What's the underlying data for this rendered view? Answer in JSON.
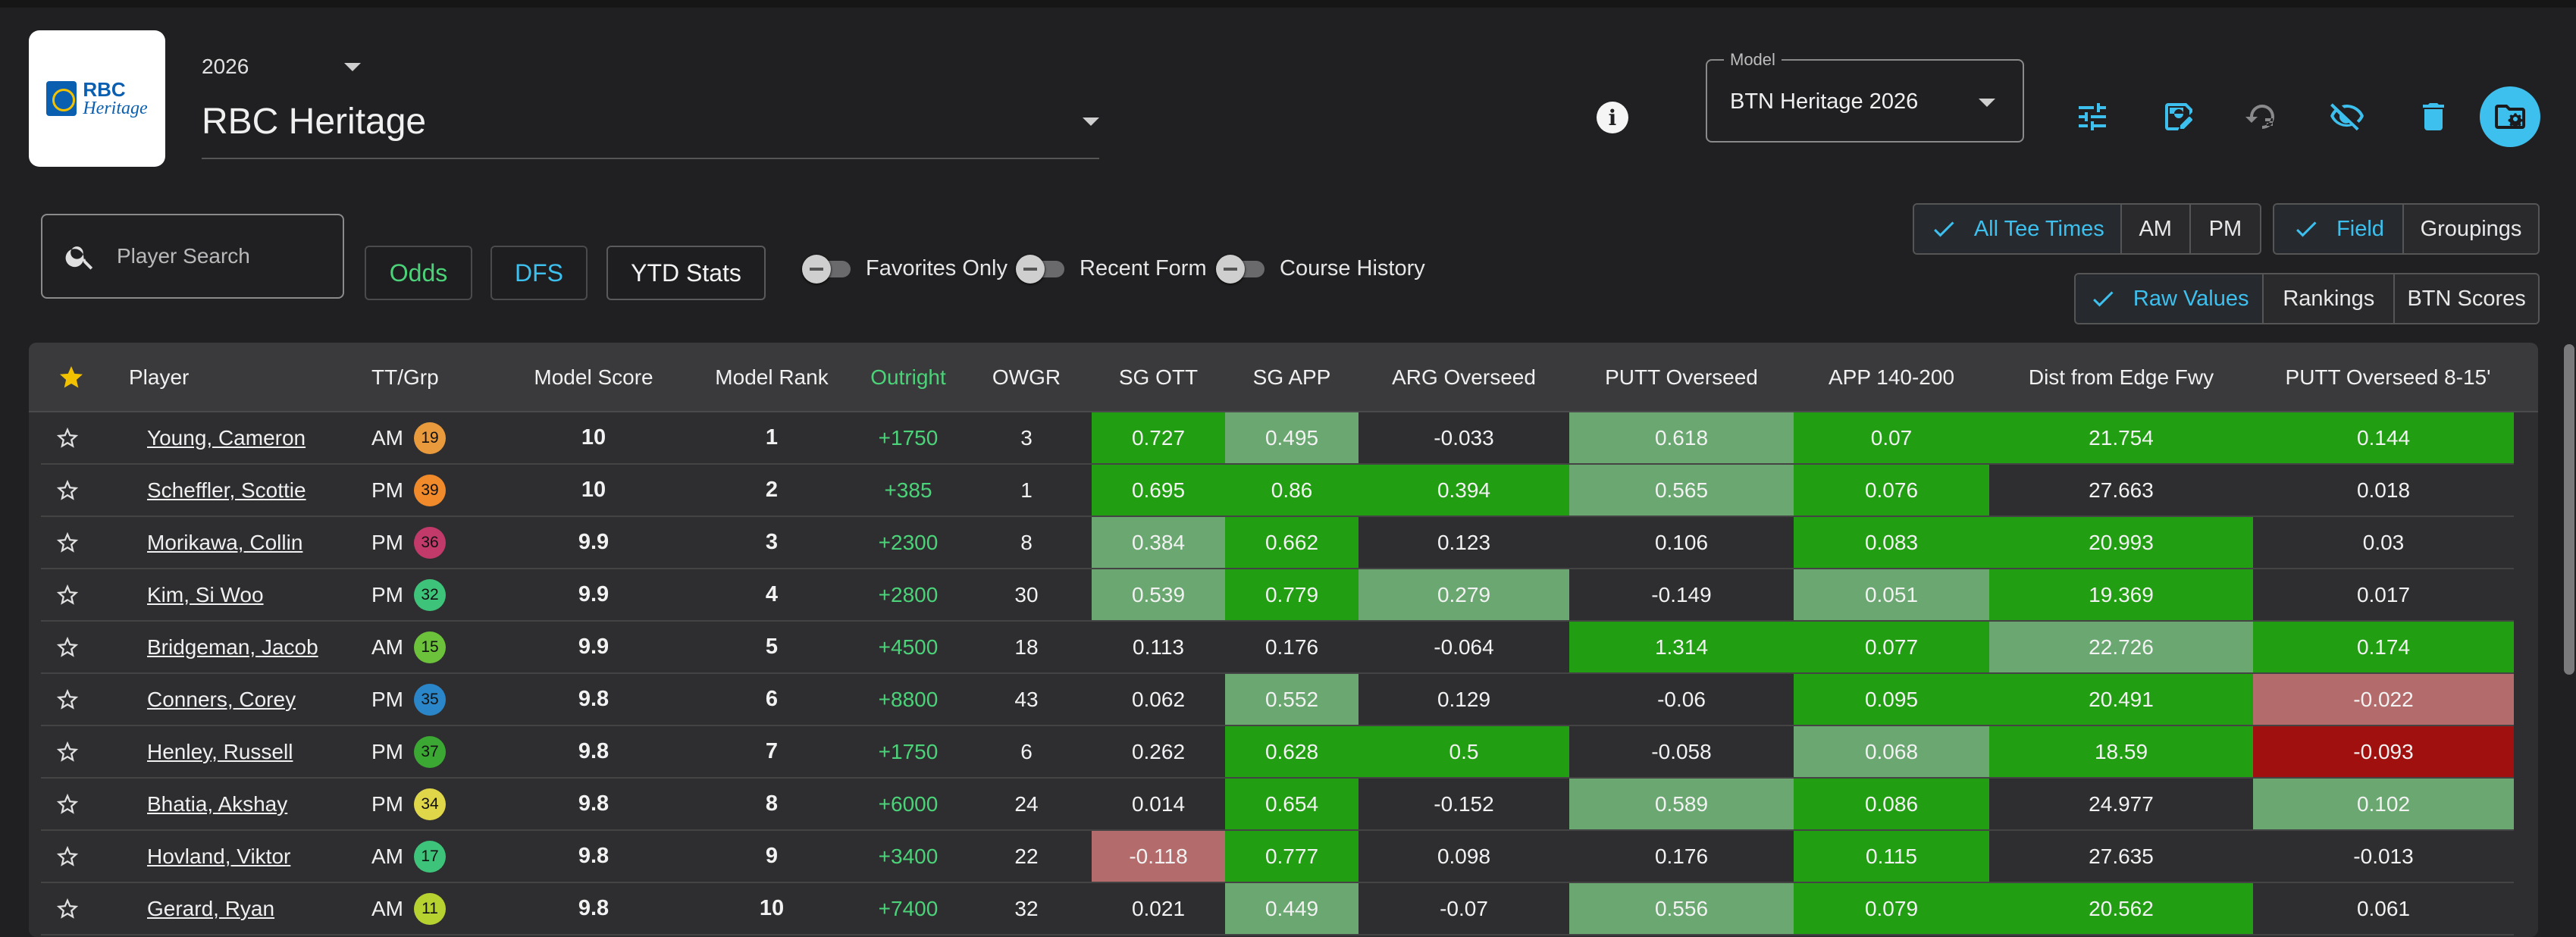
{
  "header": {
    "logo": {
      "line1": "RBC",
      "line2": "Heritage"
    },
    "year": "2026",
    "event": "RBC Heritage",
    "model_label": "Model",
    "model_value": "BTN Heritage 2026",
    "info_glyph": "i"
  },
  "toolbar": {
    "icons": [
      "sliders-icon",
      "save-icon",
      "reset-icon",
      "visibility-off-icon",
      "delete-icon",
      "folder-settings-icon"
    ],
    "colors": {
      "accent": "#3ec0ee",
      "icon": "#3ec0ee"
    }
  },
  "filters": {
    "search_placeholder": "Player Search",
    "buttons": {
      "odds": "Odds",
      "dfs": "DFS",
      "ytd": "YTD Stats"
    },
    "toggles": {
      "favorites": "Favorites Only",
      "recent": "Recent Form",
      "course": "Course History"
    },
    "tee": [
      "All Tee Times",
      "AM",
      "PM"
    ],
    "view": [
      "Field",
      "Groupings"
    ],
    "values": [
      "Raw Values",
      "Rankings",
      "BTN Scores"
    ]
  },
  "table": {
    "headers": {
      "player": "Player",
      "ttgrp": "TT/Grp",
      "model_score": "Model Score",
      "model_rank": "Model Rank",
      "outright": "Outright",
      "owgr": "OWGR",
      "sg_ott": "SG OTT",
      "sg_app": "SG APP",
      "arg_overseed": "ARG Overseed",
      "putt_overseed": "PUTT Overseed",
      "app_140_200": "APP 140-200",
      "dist_edge": "Dist from Edge Fwy",
      "putt_8_15": "PUTT Overseed 8-15'"
    },
    "rows": [
      {
        "player": "Young, Cameron",
        "tt": "AM",
        "grp": "19",
        "score": "10",
        "rank": "1",
        "outright": "+1750",
        "owgr": "3",
        "ott": "0.727",
        "app": "0.495",
        "arg": "-0.033",
        "putt": "0.618",
        "a140": "0.07",
        "dist": "21.754",
        "p815": "0.144"
      },
      {
        "player": "Scheffler, Scottie",
        "tt": "PM",
        "grp": "39",
        "score": "10",
        "rank": "2",
        "outright": "+385",
        "owgr": "1",
        "ott": "0.695",
        "app": "0.86",
        "arg": "0.394",
        "putt": "0.565",
        "a140": "0.076",
        "dist": "27.663",
        "p815": "0.018"
      },
      {
        "player": "Morikawa, Collin",
        "tt": "PM",
        "grp": "36",
        "score": "9.9",
        "rank": "3",
        "outright": "+2300",
        "owgr": "8",
        "ott": "0.384",
        "app": "0.662",
        "arg": "0.123",
        "putt": "0.106",
        "a140": "0.083",
        "dist": "20.993",
        "p815": "0.03"
      },
      {
        "player": "Kim, Si Woo",
        "tt": "PM",
        "grp": "32",
        "score": "9.9",
        "rank": "4",
        "outright": "+2800",
        "owgr": "30",
        "ott": "0.539",
        "app": "0.779",
        "arg": "0.279",
        "putt": "-0.149",
        "a140": "0.051",
        "dist": "19.369",
        "p815": "0.017"
      },
      {
        "player": "Bridgeman, Jacob",
        "tt": "AM",
        "grp": "15",
        "score": "9.9",
        "rank": "5",
        "outright": "+4500",
        "owgr": "18",
        "ott": "0.113",
        "app": "0.176",
        "arg": "-0.064",
        "putt": "1.314",
        "a140": "0.077",
        "dist": "22.726",
        "p815": "0.174"
      },
      {
        "player": "Conners, Corey",
        "tt": "PM",
        "grp": "35",
        "score": "9.8",
        "rank": "6",
        "outright": "+8800",
        "owgr": "43",
        "ott": "0.062",
        "app": "0.552",
        "arg": "0.129",
        "putt": "-0.06",
        "a140": "0.095",
        "dist": "20.491",
        "p815": "-0.022"
      },
      {
        "player": "Henley, Russell",
        "tt": "PM",
        "grp": "37",
        "score": "9.8",
        "rank": "7",
        "outright": "+1750",
        "owgr": "6",
        "ott": "0.262",
        "app": "0.628",
        "arg": "0.5",
        "putt": "-0.058",
        "a140": "0.068",
        "dist": "18.59",
        "p815": "-0.093"
      },
      {
        "player": "Bhatia, Akshay",
        "tt": "PM",
        "grp": "34",
        "score": "9.8",
        "rank": "8",
        "outright": "+6000",
        "owgr": "24",
        "ott": "0.014",
        "app": "0.654",
        "arg": "-0.152",
        "putt": "0.589",
        "a140": "0.086",
        "dist": "24.977",
        "p815": "0.102"
      },
      {
        "player": "Hovland, Viktor",
        "tt": "AM",
        "grp": "17",
        "score": "9.8",
        "rank": "9",
        "outright": "+3400",
        "owgr": "22",
        "ott": "-0.118",
        "app": "0.777",
        "arg": "0.098",
        "putt": "0.176",
        "a140": "0.115",
        "dist": "27.635",
        "p815": "-0.013"
      },
      {
        "player": "Gerard, Ryan",
        "tt": "AM",
        "grp": "11",
        "score": "9.8",
        "rank": "10",
        "outright": "+7400",
        "owgr": "32",
        "ott": "0.021",
        "app": "0.449",
        "arg": "-0.07",
        "putt": "0.556",
        "a140": "0.079",
        "dist": "20.562",
        "p815": "0.061"
      }
    ],
    "badge_colors": [
      "#e99a3c",
      "#f08a2b",
      "#c23a6a",
      "#3ec47a",
      "#6cc23a",
      "#2a86c8",
      "#3aa832",
      "#e0d64a",
      "#3ec47a",
      "#b6d230"
    ],
    "cell_colors": [
      {
        "ott": "g1",
        "app": "g2",
        "arg": "",
        "putt": "g2",
        "a140": "g1",
        "dist": "g1",
        "p815": "g1"
      },
      {
        "ott": "g1",
        "app": "g1",
        "arg": "g1",
        "putt": "g2",
        "a140": "g1",
        "dist": "",
        "p815": ""
      },
      {
        "ott": "g2",
        "app": "g1",
        "arg": "",
        "putt": "",
        "a140": "g1",
        "dist": "g1",
        "p815": ""
      },
      {
        "ott": "g2",
        "app": "g1",
        "arg": "g2",
        "putt": "",
        "a140": "g2",
        "dist": "g1",
        "p815": ""
      },
      {
        "ott": "",
        "app": "",
        "arg": "",
        "putt": "g1",
        "a140": "g1",
        "dist": "g2",
        "p815": "g1"
      },
      {
        "ott": "",
        "app": "g2",
        "arg": "",
        "putt": "",
        "a140": "g1",
        "dist": "g1",
        "p815": "r1"
      },
      {
        "ott": "",
        "app": "g1",
        "arg": "g1",
        "putt": "",
        "a140": "g2",
        "dist": "g1",
        "p815": "r2"
      },
      {
        "ott": "",
        "app": "g1",
        "arg": "",
        "putt": "g2",
        "a140": "g1",
        "dist": "",
        "p815": "g2"
      },
      {
        "ott": "r1",
        "app": "g1",
        "arg": "",
        "putt": "",
        "a140": "g1",
        "dist": "",
        "p815": ""
      },
      {
        "ott": "",
        "app": "g2",
        "arg": "",
        "putt": "g2",
        "a140": "g1",
        "dist": "g1",
        "p815": ""
      }
    ]
  }
}
